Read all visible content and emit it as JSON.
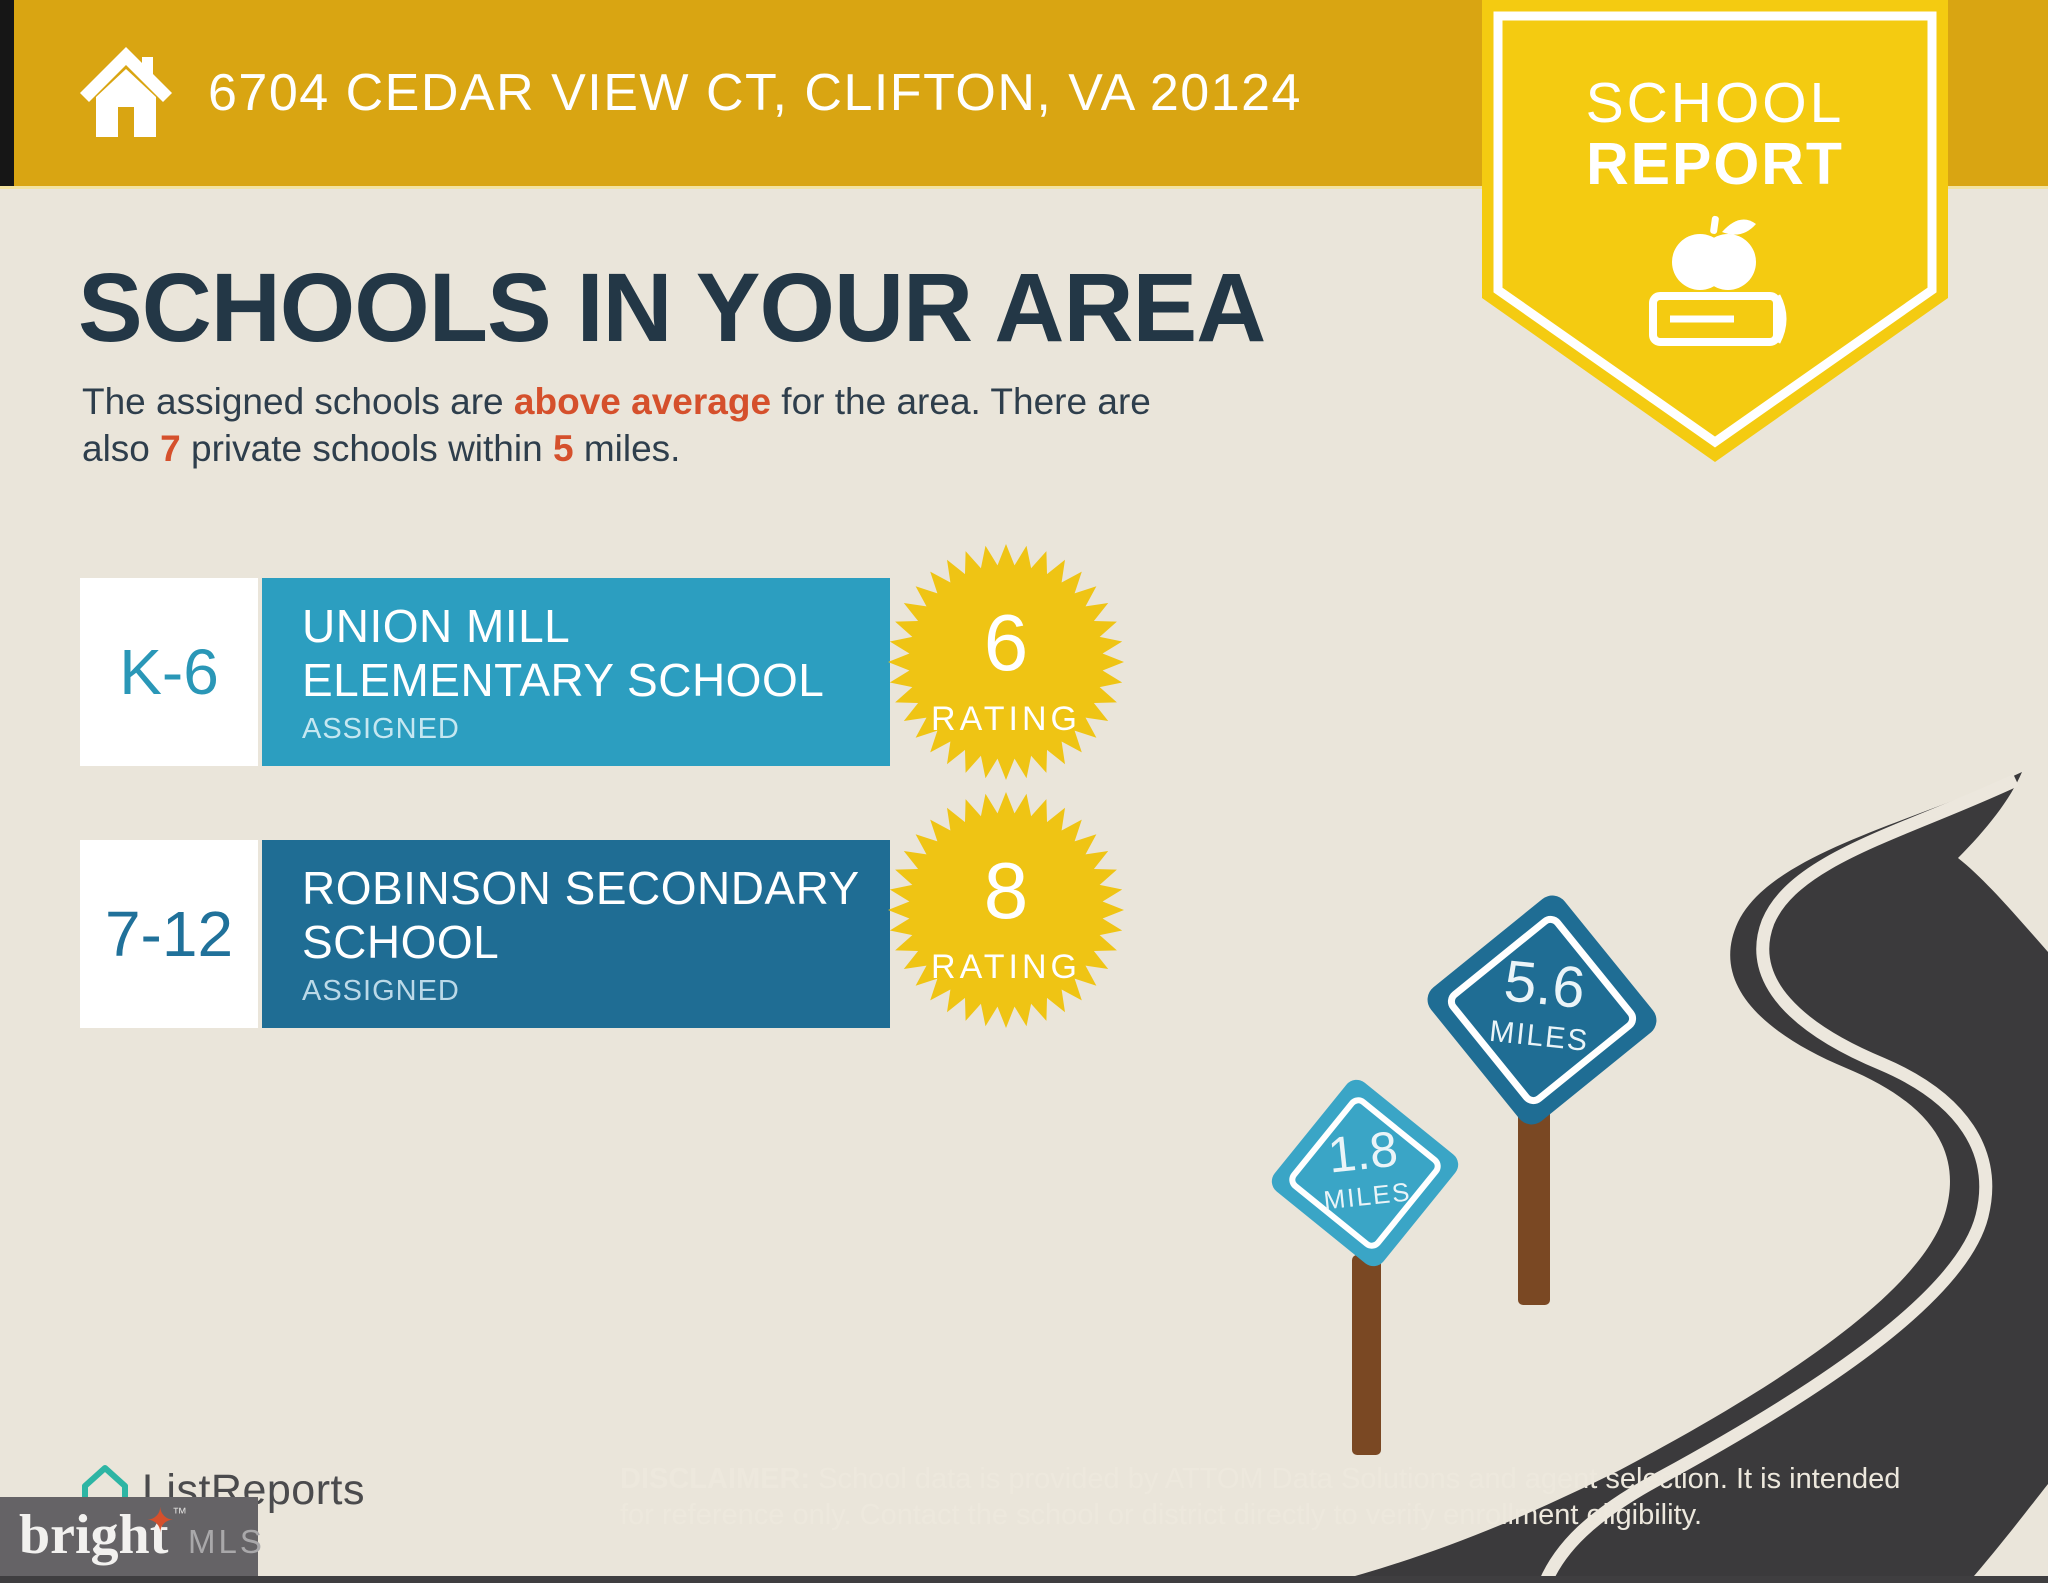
{
  "colors": {
    "background": "#EAE5DA",
    "banner_gold": "#D9A512",
    "pennant_yellow": "#F4CB11",
    "starburst_yellow": "#EFC414",
    "heading_navy": "#233746",
    "accent_orange": "#D5502C",
    "elementary_teal": "#2C9EC0",
    "secondary_blue": "#1F6D94",
    "sign_light_teal": "#3AA5C6",
    "road_dark": "#3B3A3C",
    "post_brown": "#7A4823",
    "bright_box_gray": "#656366"
  },
  "banner": {
    "address": "6704 CEDAR VIEW CT, CLIFTON, VA 20124"
  },
  "badge": {
    "line1": "SCHOOL",
    "line2": "REPORT"
  },
  "heading": "SCHOOLS IN YOUR AREA",
  "subtitle": {
    "l1a": "The assigned schools are ",
    "l1b": "above average",
    "l1c": " for the area. There are",
    "l2a": "also ",
    "l2b": "7",
    "l2c": " private schools within ",
    "l2d": "5",
    "l2e": " miles."
  },
  "cards": [
    {
      "grades": "K-6",
      "line1": "UNION MILL",
      "line2": "ELEMENTARY SCHOOL",
      "status": "ASSIGNED",
      "rating": "6",
      "rating_label": "RATING"
    },
    {
      "grades": "7-12",
      "line1": "ROBINSON SECONDARY",
      "line2": "SCHOOL",
      "status": "ASSIGNED",
      "rating": "8",
      "rating_label": "RATING"
    }
  ],
  "signs": [
    {
      "value": "5.6",
      "unit": "MILES"
    },
    {
      "value": "1.8",
      "unit": "MILES"
    }
  ],
  "footer": {
    "brand": "ListReports",
    "bright_word": "bright",
    "bright_tm": "™",
    "bright_mls": "MLS",
    "disclaimer_label": "DISCLAIMER:",
    "disclaimer_line1": " School data is provided by ATTOM Data Solutions and agent selection. It is intended",
    "disclaimer_line2": "for reference only. Contact the school or district directly to verify enrollment eligibility."
  }
}
